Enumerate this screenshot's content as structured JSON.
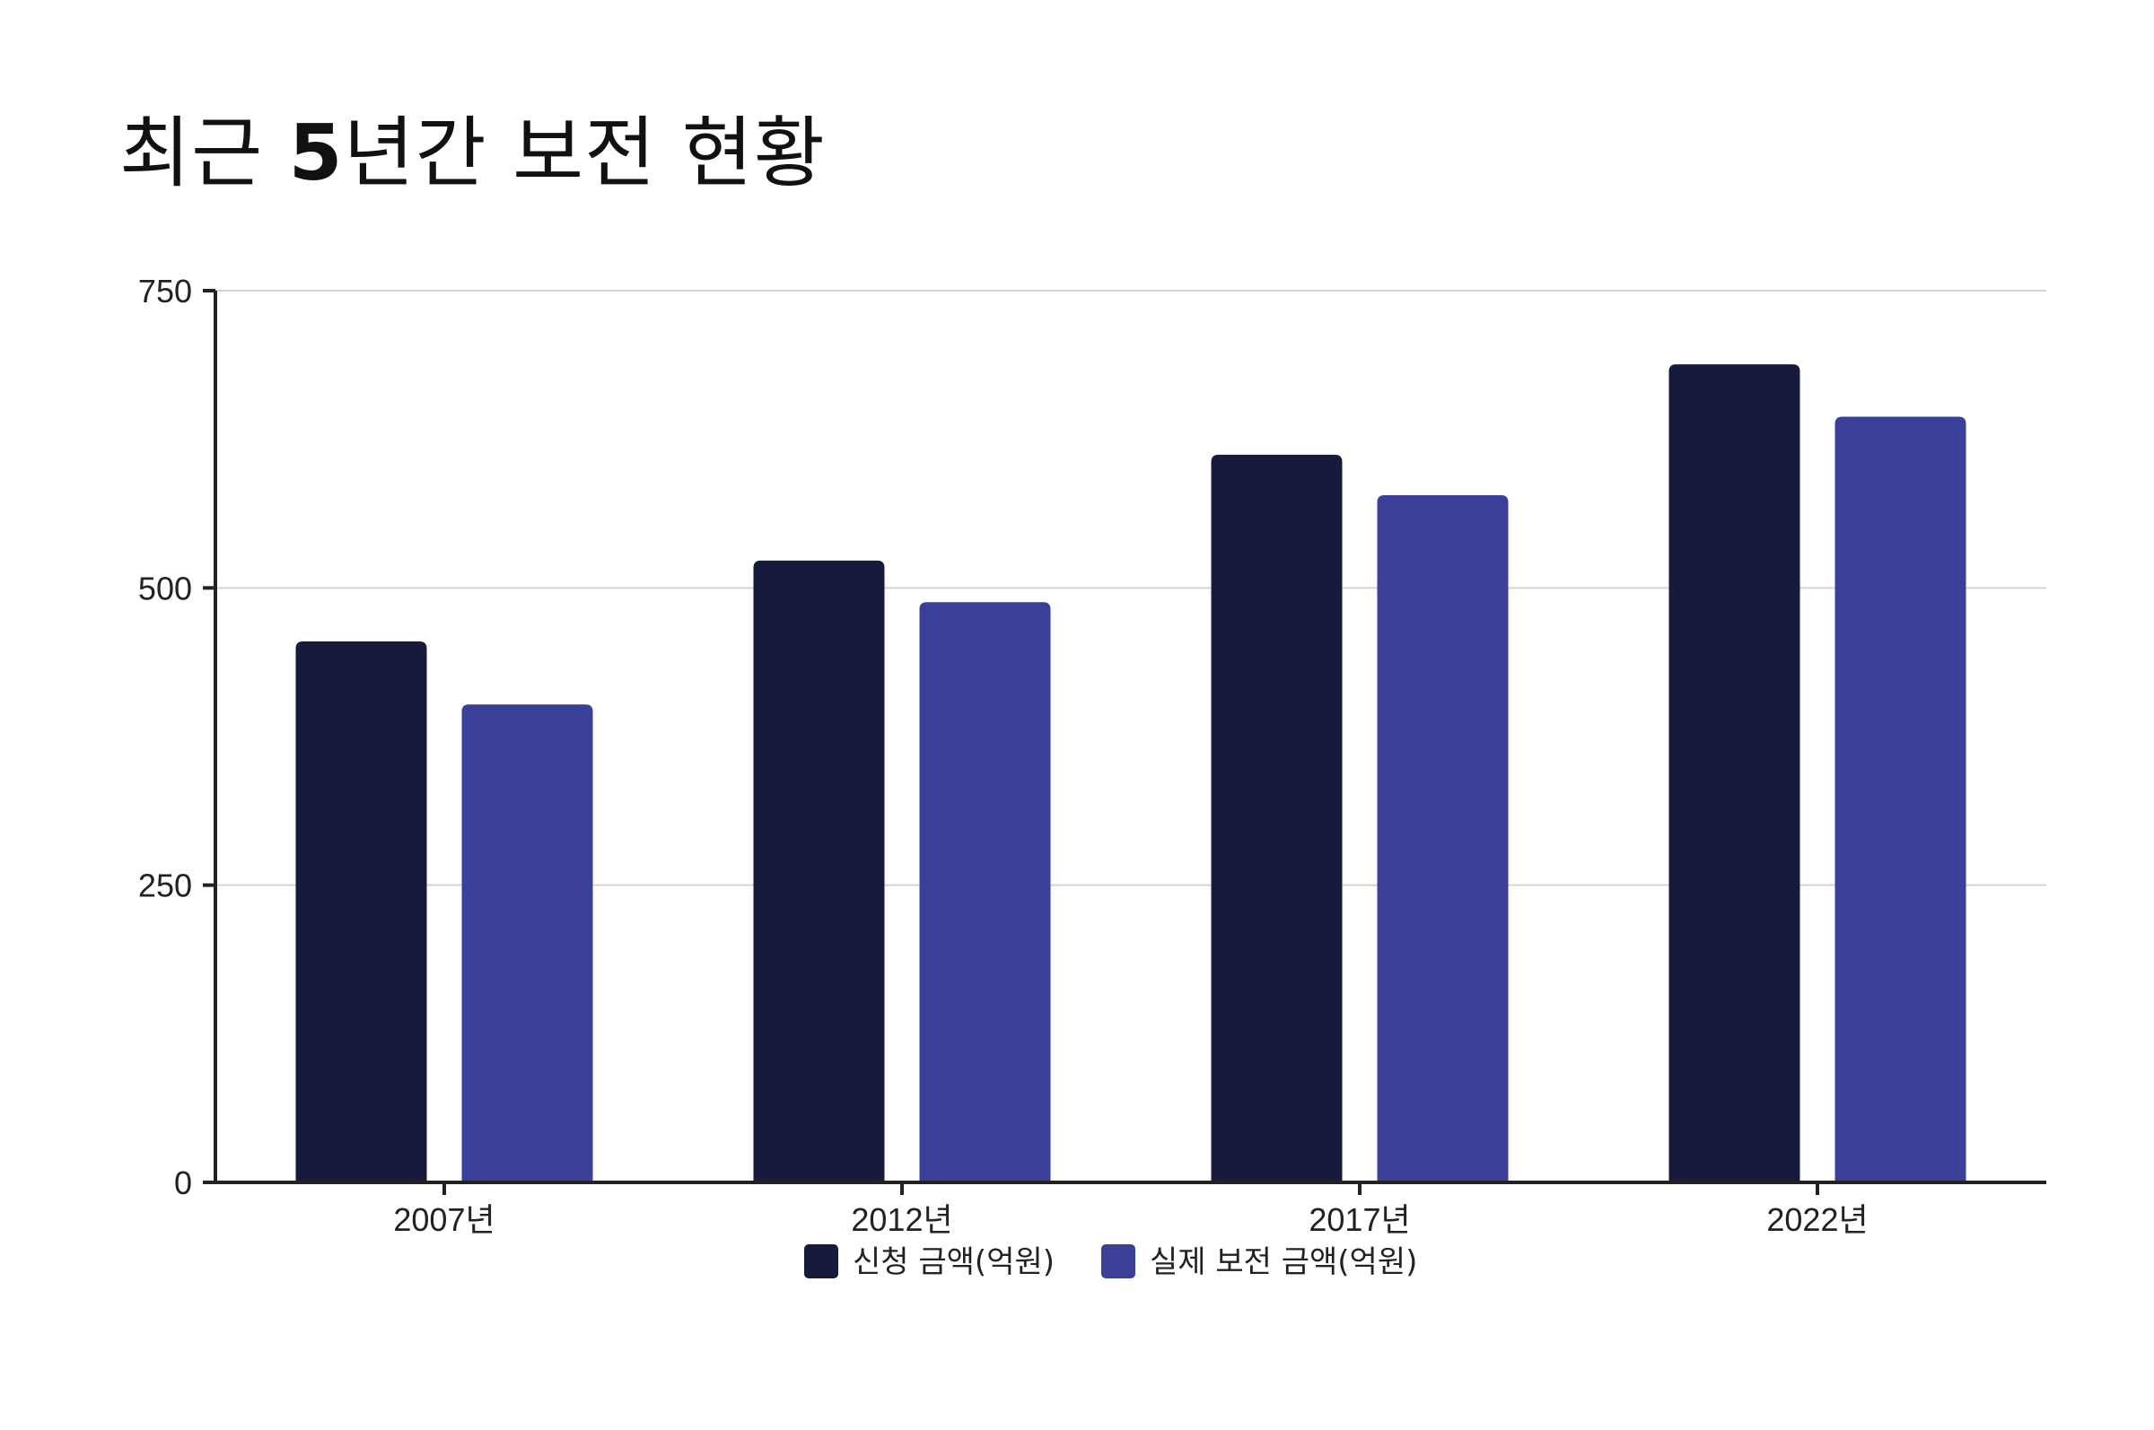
{
  "chart_data": {
    "type": "bar",
    "title_prefix": "최근 ",
    "title_number": "5",
    "title_suffix": "년간 보전 현황",
    "categories": [
      "2007년",
      "2012년",
      "2017년",
      "2022년"
    ],
    "series": [
      {
        "name": "신청 금액(억원)",
        "values": [
          455,
          523,
          612,
          688
        ],
        "color": "#171a3a"
      },
      {
        "name": "실제 보전 금액(억원)",
        "values": [
          402,
          488,
          578,
          644
        ],
        "color": "#3a3f99"
      }
    ],
    "ylim": [
      0,
      750
    ],
    "yticks": [
      0,
      250,
      500,
      750
    ],
    "grid": true,
    "legend_position": "bottom"
  }
}
